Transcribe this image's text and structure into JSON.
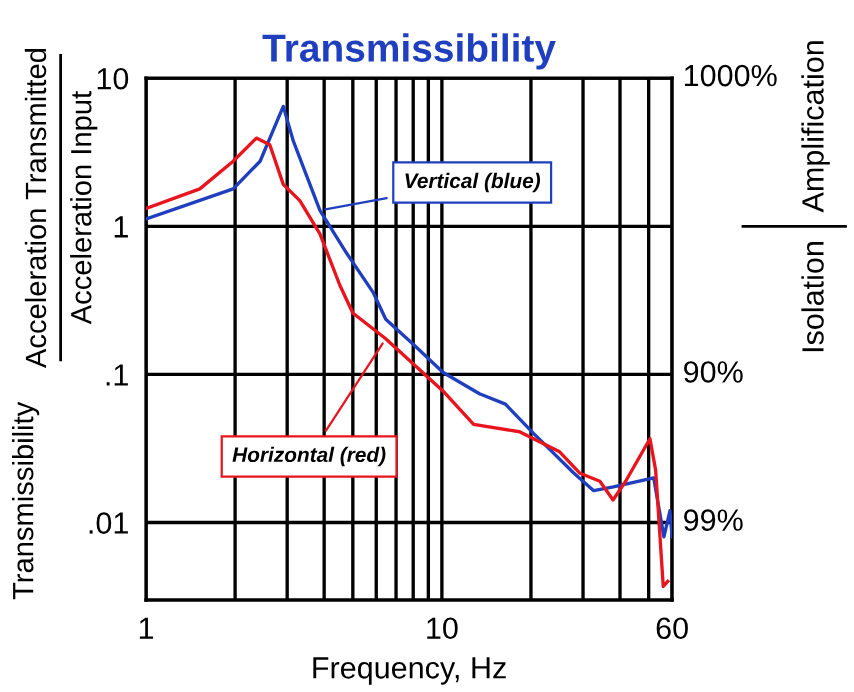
{
  "chart_data": {
    "type": "line",
    "title": "Transmissibility",
    "xlabel": "Frequency, Hz",
    "ylabel": "Transmissibility",
    "y2label": [
      "Amplification",
      "Isolation"
    ],
    "annotations": [
      "Acceleration Transmitted",
      "Acceleration Input",
      "1000%",
      "90%",
      "99%"
    ],
    "log": "xy",
    "grid": true,
    "marker": "none",
    "line_style": "solid",
    "legend": false,
    "xlim": [
      1,
      60
    ],
    "ylim": [
      0.003,
      10
    ],
    "xticks": [
      1,
      {
        "value": 2,
        "label": null
      },
      {
        "value": 3,
        "label": null
      },
      {
        "value": 4,
        "label": null
      },
      {
        "value": 5,
        "label": null
      },
      {
        "value": 6,
        "label": null
      },
      {
        "value": 7,
        "label": null
      },
      {
        "value": 8,
        "label": null
      },
      {
        "value": 9,
        "label": null
      },
      10,
      {
        "value": 20,
        "label": null
      },
      {
        "value": 30,
        "label": null
      },
      {
        "value": 40,
        "label": null
      },
      {
        "value": 50,
        "label": null
      },
      60
    ],
    "yticks": [
      {
        "value": 0.01,
        "label": ".01"
      },
      {
        "value": 0.1,
        "label": ".1"
      },
      1,
      10
    ],
    "series": [
      {
        "name": "Vertical (blue)",
        "color": "#1f3fbf",
        "x": [
          1,
          1.97,
          2.43,
          2.91,
          3.15,
          3.87,
          4.76,
          5.87,
          6.46,
          8.0,
          10.1,
          13.4,
          16.4,
          20.4,
          27.9,
          32.6,
          38,
          52,
          56.3,
          59,
          60
        ],
        "values": [
          1.12,
          1.79,
          2.75,
          6.45,
          3.74,
          1.28,
          0.66,
          0.355,
          0.236,
          0.16,
          0.103,
          0.074,
          0.063,
          0.04,
          0.0216,
          0.0164,
          0.0174,
          0.02,
          0.008,
          0.012,
          0.008
        ]
      },
      {
        "name": "Horizontal (red)",
        "color": "#e8141e",
        "x": [
          1,
          1.52,
          1.97,
          2.36,
          2.62,
          2.91,
          3.31,
          3.87,
          4.52,
          5.0,
          6.46,
          10.1,
          12.8,
          18.3,
          25,
          29.3,
          34.2,
          37.9,
          41.8,
          50.5,
          52.8,
          56,
          58
        ],
        "values": [
          1.32,
          1.79,
          2.75,
          3.94,
          3.55,
          1.92,
          1.49,
          0.89,
          0.4,
          0.26,
          0.174,
          0.077,
          0.046,
          0.041,
          0.03,
          0.0215,
          0.019,
          0.0142,
          0.019,
          0.0368,
          0.0225,
          0.0037,
          0.004
        ]
      }
    ]
  }
}
